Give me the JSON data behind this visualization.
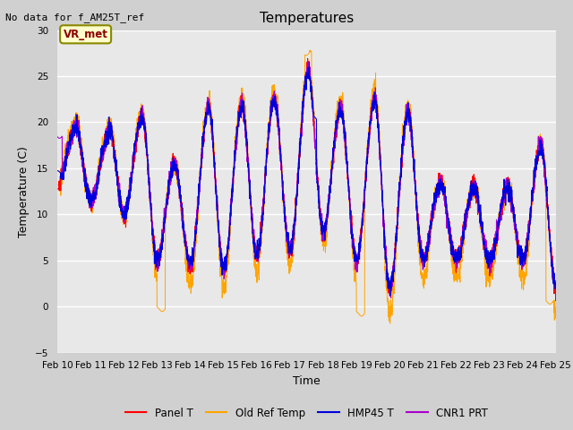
{
  "title": "Temperatures",
  "xlabel": "Time",
  "ylabel": "Temperature (C)",
  "ylim": [
    -5,
    30
  ],
  "xlim": [
    0,
    15
  ],
  "plot_bg_color": "#e8e8e8",
  "fig_bg_color": "#d0d0d0",
  "annotation_text": "No data for f_AM25T_ref",
  "box_label": "VR_met",
  "series": {
    "Panel T": {
      "color": "#ff0000"
    },
    "Old Ref Temp": {
      "color": "#ffa500"
    },
    "HMP45 T": {
      "color": "#0000dd"
    },
    "CNR1 PRT": {
      "color": "#aa00cc"
    }
  },
  "tick_labels": [
    "Feb 10",
    "Feb 11",
    "Feb 12",
    "Feb 13",
    "Feb 14",
    "Feb 15",
    "Feb 16",
    "Feb 17",
    "Feb 18",
    "Feb 19",
    "Feb 20",
    "Feb 21",
    "Feb 22",
    "Feb 23",
    "Feb 24",
    "Feb 25"
  ],
  "yticks": [
    -5,
    0,
    5,
    10,
    15,
    20,
    25,
    30
  ],
  "title_fontsize": 11,
  "label_fontsize": 9,
  "tick_fontsize": 7.5
}
